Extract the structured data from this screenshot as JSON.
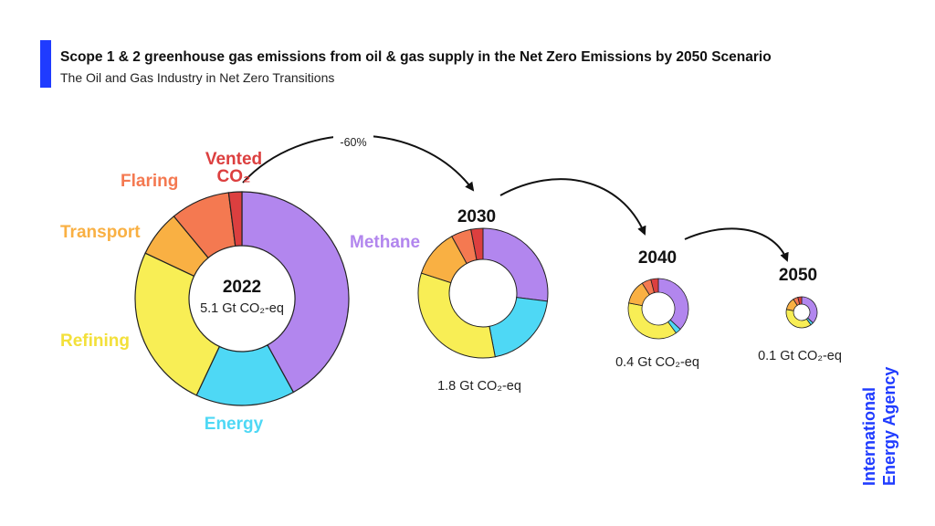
{
  "header": {
    "title": "Scope 1 & 2 greenhouse gas emissions from oil & gas supply in the Net Zero Emissions by 2050 Scenario",
    "subtitle": "The Oil and Gas Industry in Net Zero Transitions"
  },
  "colors": {
    "accent": "#1f3bff",
    "Methane": "#b286ee",
    "Energy": "#4ed8f5",
    "Refining": "#f8ee55",
    "Transport": "#f9b043",
    "Flaring": "#f47951",
    "Vented CO₂": "#dc3f3f",
    "logo": "#1f3bff"
  },
  "chart_data": {
    "type": "pie",
    "variant": "donut",
    "categories": [
      "Methane",
      "Energy",
      "Refining",
      "Transport",
      "Flaring",
      "Vented CO₂"
    ],
    "category_labels": {
      "Methane": "Methane",
      "Energy": "Energy",
      "Refining": "Refining",
      "Transport": "Transport",
      "Flaring": "Flaring",
      "Vented CO₂": [
        "Vented",
        "CO₂"
      ]
    },
    "series": [
      {
        "name": "2022",
        "total": 5.1,
        "total_label": "5.1 Gt CO₂-eq",
        "values": [
          0.42,
          0.15,
          0.25,
          0.07,
          0.09,
          0.02
        ]
      },
      {
        "name": "2030",
        "total": 1.8,
        "total_label": "1.8 Gt CO₂-eq",
        "values": [
          0.27,
          0.2,
          0.33,
          0.12,
          0.05,
          0.03
        ]
      },
      {
        "name": "2040",
        "total": 0.4,
        "total_label": "0.4 Gt CO₂-eq",
        "values": [
          0.37,
          0.03,
          0.38,
          0.13,
          0.05,
          0.04
        ]
      },
      {
        "name": "2050",
        "total": 0.1,
        "total_label": "0.1 Gt CO₂-eq",
        "values": [
          0.37,
          0.03,
          0.38,
          0.13,
          0.05,
          0.04
        ]
      }
    ],
    "annotations": [
      "-60%"
    ]
  },
  "logo": {
    "line1": "International",
    "line2": "Energy Agency"
  }
}
